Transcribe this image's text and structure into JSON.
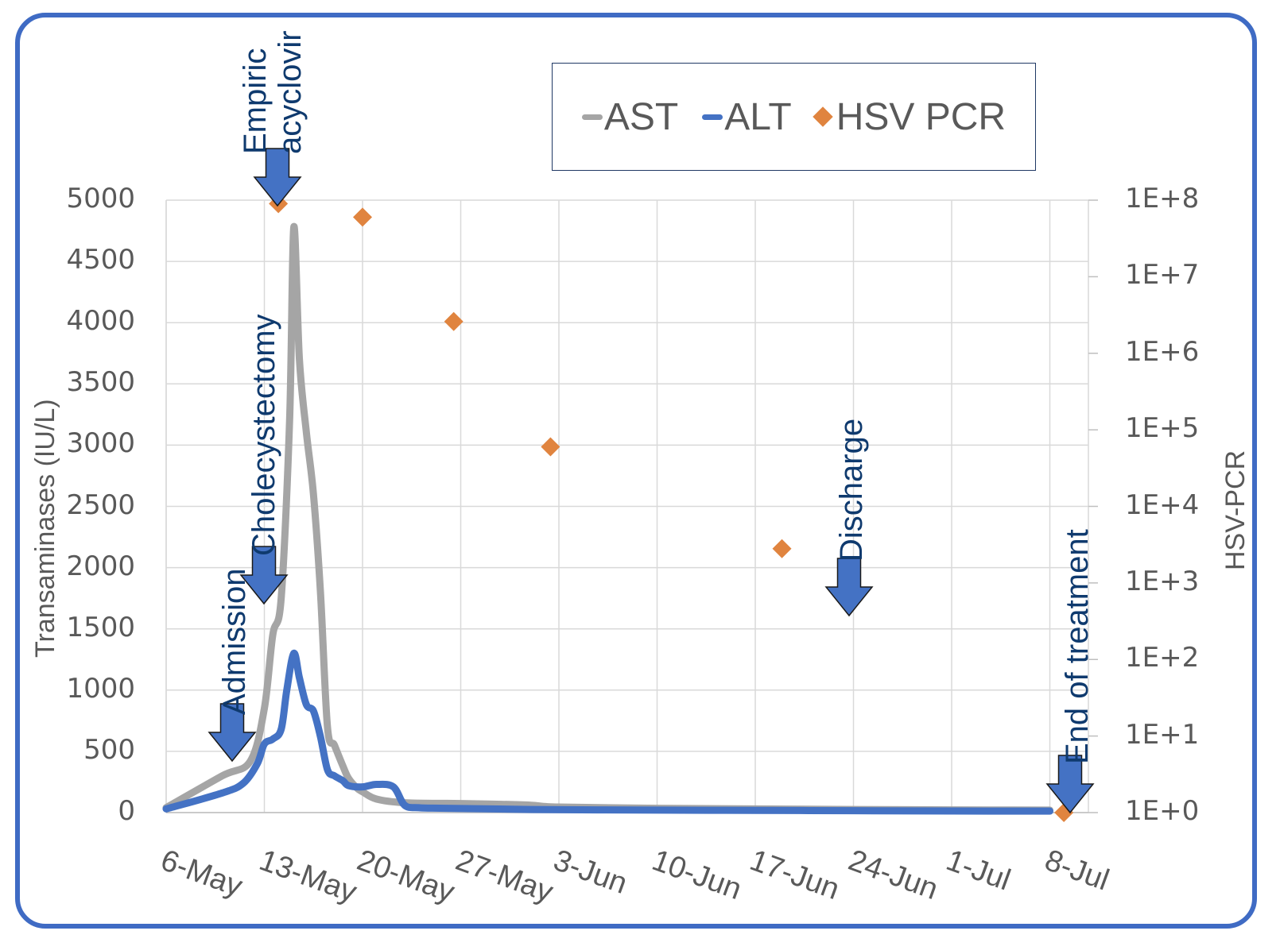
{
  "chart_data": {
    "type": "line",
    "title": "",
    "xlabel": "",
    "ylabel": "Transaminases (IU/L)",
    "ylabel_right": "HSV-PCR",
    "ylim": [
      0,
      5000
    ],
    "ylim_right_log10": [
      0,
      8
    ],
    "y_ticks": [
      "0",
      "500",
      "1000",
      "1500",
      "2000",
      "2500",
      "3000",
      "3500",
      "4000",
      "4500",
      "5000"
    ],
    "y_right_ticks": [
      "1E+0",
      "1E+1",
      "1E+2",
      "1E+3",
      "1E+4",
      "1E+5",
      "1E+6",
      "1E+7",
      "1E+8"
    ],
    "x_ticks": [
      "6-May",
      "13-May",
      "20-May",
      "27-May",
      "3-Jun",
      "10-Jun",
      "17-Jun",
      "24-Jun",
      "1-Jul",
      "8-Jul"
    ],
    "x_unit": "days since 6-May",
    "grid": true,
    "legend_position": "top-right",
    "legend": [
      "AST",
      "ALT",
      "HSV PCR"
    ],
    "colors": {
      "AST": "#A5A5A5",
      "ALT": "#4472C4",
      "HSV PCR": "#E0843F",
      "arrow": "#4472C4",
      "frame": "#3F6BC4",
      "annotation": "#0F3A6E"
    },
    "series": [
      {
        "name": "AST",
        "type": "line",
        "x": [
          0,
          4,
          6,
          7,
          7.6,
          8.2,
          8.8,
          9.1,
          9.5,
          10,
          10.5,
          11,
          11.5,
          12,
          12.6,
          13,
          13.6,
          14,
          15,
          17,
          20,
          23,
          26,
          28,
          35,
          42,
          49,
          56,
          63
        ],
        "y": [
          40,
          300,
          420,
          850,
          1450,
          1750,
          3200,
          4780,
          3700,
          3100,
          2600,
          1800,
          700,
          550,
          380,
          280,
          200,
          170,
          110,
          80,
          75,
          70,
          60,
          45,
          35,
          30,
          25,
          22,
          20
        ]
      },
      {
        "name": "ALT",
        "type": "line",
        "x": [
          0,
          4,
          5.5,
          6.5,
          7,
          7.6,
          8.2,
          8.6,
          9.1,
          9.5,
          10,
          10.5,
          11,
          11.5,
          12,
          12.6,
          13,
          14,
          15,
          16.2,
          17,
          18,
          20,
          26,
          35,
          42,
          49,
          56,
          63
        ],
        "y": [
          30,
          160,
          240,
          400,
          560,
          600,
          680,
          1000,
          1300,
          1100,
          880,
          830,
          620,
          350,
          300,
          260,
          220,
          210,
          230,
          210,
          60,
          40,
          35,
          25,
          20,
          18,
          15,
          13,
          12
        ]
      },
      {
        "name": "HSV PCR",
        "type": "scatter",
        "x": [
          8,
          14,
          20.5,
          27.4,
          43.9,
          64
        ],
        "y": [
          90000000.0,
          60000000.0,
          2600000.0,
          60000.0,
          2800.0,
          1
        ]
      }
    ],
    "annotations": [
      {
        "label": "Admission",
        "day": 4.5
      },
      {
        "label": "Cholecystectomy",
        "day": 7
      },
      {
        "label_line1": "Empiric",
        "label_line2": "acyclovir",
        "day": 7.8
      },
      {
        "label": "Discharge",
        "day": 48.8
      },
      {
        "label": "End of treatment",
        "day": 63
      }
    ]
  }
}
